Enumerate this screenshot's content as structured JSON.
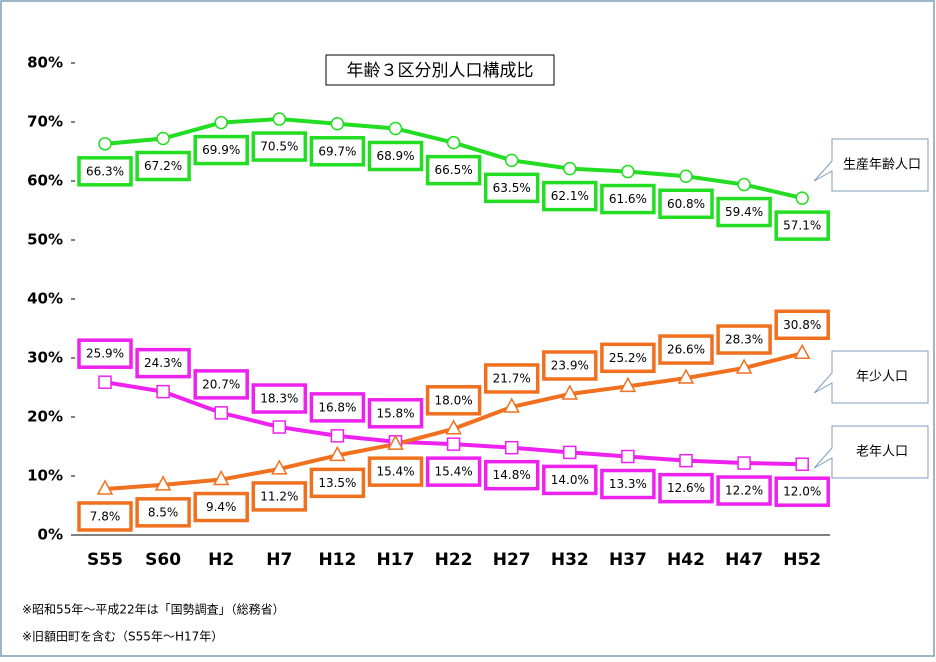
{
  "chart_data": {
    "type": "line",
    "title": "年齢３区分別人口構成比",
    "categories": [
      "S55",
      "S60",
      "H2",
      "H7",
      "H12",
      "H17",
      "H22",
      "H27",
      "H32",
      "H37",
      "H42",
      "H47",
      "H52"
    ],
    "series": [
      {
        "name": "生産年齢人口",
        "color": "#22dd22",
        "marker": "circle",
        "values": [
          66.3,
          67.2,
          69.9,
          70.5,
          69.7,
          68.9,
          66.5,
          63.5,
          62.1,
          61.6,
          60.8,
          59.4,
          57.1
        ],
        "value_labels": [
          "66.3%",
          "67.2%",
          "69.9%",
          "70.5%",
          "69.7%",
          "68.9%",
          "66.5%",
          "63.5%",
          "62.1%",
          "61.6%",
          "60.8%",
          "59.4%",
          "57.1%"
        ]
      },
      {
        "name": "年少人口",
        "color": "#ee22ee",
        "marker": "square",
        "values": [
          25.9,
          24.3,
          20.7,
          18.3,
          16.8,
          15.8,
          15.4,
          14.8,
          14.0,
          13.3,
          12.6,
          12.2,
          12.0
        ],
        "value_labels": [
          "25.9%",
          "24.3%",
          "20.7%",
          "18.3%",
          "16.8%",
          "15.8%",
          "15.4%",
          "14.8%",
          "14.0%",
          "13.3%",
          "12.6%",
          "12.2%",
          "12.0%"
        ]
      },
      {
        "name": "老年人口",
        "color": "#f07020",
        "marker": "triangle",
        "values": [
          7.8,
          8.5,
          9.4,
          11.2,
          13.5,
          15.4,
          18.0,
          21.7,
          23.9,
          25.2,
          26.6,
          28.3,
          30.8
        ],
        "value_labels": [
          "7.8%",
          "8.5%",
          "9.4%",
          "11.2%",
          "13.5%",
          "15.4%",
          "18.0%",
          "21.7%",
          "23.9%",
          "25.2%",
          "26.6%",
          "28.3%",
          "30.8%"
        ]
      }
    ],
    "ylim": [
      0,
      80
    ],
    "yticks": [
      {
        "value": 0,
        "label": "0%"
      },
      {
        "value": 10,
        "label": "10%"
      },
      {
        "value": 20,
        "label": "20%"
      },
      {
        "value": 30,
        "label": "30%"
      },
      {
        "value": 40,
        "label": "40%"
      },
      {
        "value": 50,
        "label": "50%"
      },
      {
        "value": 60,
        "label": "60%"
      },
      {
        "value": 70,
        "label": "70%"
      },
      {
        "value": 80,
        "label": "80%"
      }
    ],
    "grid": false,
    "notes": [
      "※昭和55年～平成22年は「国勢調査」（総務省）",
      "※旧額田町を含む（S55年～H17年）"
    ]
  }
}
